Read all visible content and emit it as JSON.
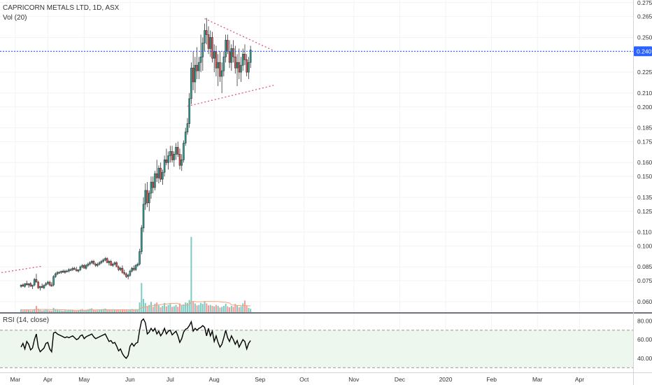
{
  "header": {
    "symbol_line": "CAPRICORN METALS LTD, 1D, ASX",
    "volume_label": "Vol (20)"
  },
  "rsi_panel": {
    "label": "RSI (14, close)",
    "ticks": [
      "80.00",
      "60.00",
      "40.00"
    ],
    "tick_values": [
      80,
      60,
      40
    ],
    "overbought": 70,
    "oversold": 30,
    "ylim": [
      25,
      87
    ]
  },
  "colors": {
    "up": "#26a69a",
    "up_fill": "#ffffff",
    "down": "#ef5350",
    "candle_border": "#333333",
    "trendline": "#e0567c",
    "price_line": "#2962ff",
    "volume_ma": "#f4a27c",
    "rsi_line": "#000000",
    "rsi_band": "#eef7ee"
  },
  "chart_data": {
    "type": "candlestick",
    "price_axis": {
      "ticks": [
        "0.275",
        "0.265",
        "0.250",
        "0.240",
        "0.225",
        "0.210",
        "0.200",
        "0.185",
        "0.175",
        "0.160",
        "0.150",
        "0.135",
        "0.125",
        "0.110",
        "0.100",
        "0.085",
        "0.075",
        "0.060"
      ],
      "tick_values": [
        0.275,
        0.265,
        0.25,
        0.24,
        0.225,
        0.21,
        0.2,
        0.185,
        0.175,
        0.16,
        0.15,
        0.135,
        0.125,
        0.11,
        0.1,
        0.085,
        0.075,
        0.06
      ],
      "ylim": [
        0.0519,
        0.2769
      ],
      "current_price": 0.24,
      "current_price_label": "0.240"
    },
    "time_axis": {
      "labels": [
        "Mar",
        "Apr",
        "May",
        "Jun",
        "Jul",
        "Aug",
        "Sep",
        "Oct",
        "Nov",
        "Dec",
        "2020",
        "Feb",
        "Mar",
        "Apr"
      ],
      "label_index": [
        -3,
        14,
        33,
        57,
        78,
        101,
        125,
        148,
        174,
        198,
        222,
        246,
        270,
        292
      ],
      "index_range": [
        -11,
        320
      ]
    },
    "candles": [
      [
        0.071,
        0.072,
        0.07,
        0.072
      ],
      [
        0.072,
        0.073,
        0.071,
        0.071
      ],
      [
        0.071,
        0.073,
        0.07,
        0.073
      ],
      [
        0.073,
        0.075,
        0.072,
        0.072
      ],
      [
        0.072,
        0.073,
        0.07,
        0.073
      ],
      [
        0.073,
        0.074,
        0.071,
        0.071
      ],
      [
        0.071,
        0.072,
        0.069,
        0.072
      ],
      [
        0.072,
        0.077,
        0.071,
        0.076
      ],
      [
        0.076,
        0.08,
        0.075,
        0.074
      ],
      [
        0.074,
        0.075,
        0.069,
        0.07
      ],
      [
        0.07,
        0.071,
        0.068,
        0.071
      ],
      [
        0.071,
        0.073,
        0.07,
        0.07
      ],
      [
        0.07,
        0.072,
        0.069,
        0.072
      ],
      [
        0.072,
        0.074,
        0.071,
        0.073
      ],
      [
        0.073,
        0.075,
        0.072,
        0.074
      ],
      [
        0.074,
        0.075,
        0.071,
        0.072
      ],
      [
        0.072,
        0.074,
        0.071,
        0.071
      ],
      [
        0.072,
        0.079,
        0.071,
        0.078
      ],
      [
        0.078,
        0.081,
        0.077,
        0.08
      ],
      [
        0.08,
        0.082,
        0.079,
        0.081
      ],
      [
        0.081,
        0.082,
        0.08,
        0.081
      ],
      [
        0.081,
        0.082,
        0.08,
        0.082
      ],
      [
        0.082,
        0.083,
        0.081,
        0.081
      ],
      [
        0.081,
        0.083,
        0.08,
        0.082
      ],
      [
        0.082,
        0.083,
        0.081,
        0.082
      ],
      [
        0.082,
        0.084,
        0.081,
        0.083
      ],
      [
        0.083,
        0.084,
        0.082,
        0.083
      ],
      [
        0.083,
        0.085,
        0.082,
        0.084
      ],
      [
        0.084,
        0.085,
        0.083,
        0.083
      ],
      [
        0.083,
        0.085,
        0.082,
        0.082
      ],
      [
        0.082,
        0.083,
        0.081,
        0.083
      ],
      [
        0.083,
        0.086,
        0.082,
        0.085
      ],
      [
        0.085,
        0.087,
        0.084,
        0.086
      ],
      [
        0.086,
        0.087,
        0.084,
        0.084
      ],
      [
        0.084,
        0.087,
        0.083,
        0.086
      ],
      [
        0.086,
        0.088,
        0.085,
        0.087
      ],
      [
        0.087,
        0.089,
        0.086,
        0.088
      ],
      [
        0.088,
        0.09,
        0.087,
        0.089
      ],
      [
        0.089,
        0.09,
        0.087,
        0.087
      ],
      [
        0.087,
        0.088,
        0.085,
        0.086
      ],
      [
        0.086,
        0.088,
        0.085,
        0.087
      ],
      [
        0.087,
        0.089,
        0.086,
        0.088
      ],
      [
        0.088,
        0.09,
        0.087,
        0.089
      ],
      [
        0.089,
        0.091,
        0.088,
        0.09
      ],
      [
        0.09,
        0.092,
        0.089,
        0.091
      ],
      [
        0.091,
        0.092,
        0.089,
        0.088
      ],
      [
        0.088,
        0.09,
        0.086,
        0.089
      ],
      [
        0.089,
        0.09,
        0.086,
        0.086
      ],
      [
        0.086,
        0.088,
        0.085,
        0.087
      ],
      [
        0.087,
        0.089,
        0.086,
        0.088
      ],
      [
        0.088,
        0.089,
        0.085,
        0.085
      ],
      [
        0.085,
        0.086,
        0.082,
        0.083
      ],
      [
        0.083,
        0.085,
        0.082,
        0.084
      ],
      [
        0.084,
        0.086,
        0.08,
        0.081
      ],
      [
        0.081,
        0.083,
        0.079,
        0.08
      ],
      [
        0.08,
        0.081,
        0.077,
        0.078
      ],
      [
        0.078,
        0.08,
        0.076,
        0.079
      ],
      [
        0.079,
        0.083,
        0.078,
        0.082
      ],
      [
        0.082,
        0.085,
        0.081,
        0.084
      ],
      [
        0.084,
        0.086,
        0.082,
        0.083
      ],
      [
        0.083,
        0.087,
        0.082,
        0.086
      ],
      [
        0.086,
        0.088,
        0.085,
        0.087
      ],
      [
        0.087,
        0.098,
        0.086,
        0.096
      ],
      [
        0.096,
        0.115,
        0.094,
        0.113
      ],
      [
        0.113,
        0.135,
        0.11,
        0.13
      ],
      [
        0.13,
        0.145,
        0.126,
        0.14
      ],
      [
        0.14,
        0.146,
        0.128,
        0.131
      ],
      [
        0.131,
        0.14,
        0.125,
        0.138
      ],
      [
        0.138,
        0.15,
        0.134,
        0.146
      ],
      [
        0.146,
        0.15,
        0.138,
        0.142
      ],
      [
        0.142,
        0.154,
        0.14,
        0.152
      ],
      [
        0.152,
        0.162,
        0.146,
        0.149
      ],
      [
        0.149,
        0.158,
        0.145,
        0.156
      ],
      [
        0.156,
        0.16,
        0.146,
        0.148
      ],
      [
        0.148,
        0.155,
        0.144,
        0.153
      ],
      [
        0.153,
        0.165,
        0.15,
        0.162
      ],
      [
        0.162,
        0.17,
        0.158,
        0.16
      ],
      [
        0.16,
        0.168,
        0.155,
        0.165
      ],
      [
        0.165,
        0.172,
        0.16,
        0.168
      ],
      [
        0.168,
        0.172,
        0.16,
        0.162
      ],
      [
        0.162,
        0.168,
        0.157,
        0.166
      ],
      [
        0.166,
        0.174,
        0.162,
        0.171
      ],
      [
        0.171,
        0.175,
        0.164,
        0.166
      ],
      [
        0.166,
        0.17,
        0.155,
        0.158
      ],
      [
        0.158,
        0.166,
        0.154,
        0.162
      ],
      [
        0.162,
        0.176,
        0.16,
        0.174
      ],
      [
        0.174,
        0.185,
        0.172,
        0.182
      ],
      [
        0.182,
        0.192,
        0.18,
        0.188
      ],
      [
        0.188,
        0.21,
        0.185,
        0.206
      ],
      [
        0.206,
        0.232,
        0.202,
        0.228
      ],
      [
        0.228,
        0.24,
        0.212,
        0.218
      ],
      [
        0.218,
        0.236,
        0.21,
        0.23
      ],
      [
        0.23,
        0.243,
        0.22,
        0.226
      ],
      [
        0.226,
        0.236,
        0.22,
        0.232
      ],
      [
        0.232,
        0.252,
        0.225,
        0.236
      ],
      [
        0.236,
        0.25,
        0.226,
        0.246
      ],
      [
        0.246,
        0.26,
        0.24,
        0.255
      ],
      [
        0.255,
        0.264,
        0.245,
        0.252
      ],
      [
        0.252,
        0.258,
        0.238,
        0.242
      ],
      [
        0.242,
        0.255,
        0.236,
        0.25
      ],
      [
        0.25,
        0.254,
        0.232,
        0.235
      ],
      [
        0.235,
        0.245,
        0.225,
        0.24
      ],
      [
        0.24,
        0.244,
        0.222,
        0.228
      ],
      [
        0.228,
        0.238,
        0.215,
        0.232
      ],
      [
        0.232,
        0.24,
        0.218,
        0.222
      ],
      [
        0.222,
        0.232,
        0.21,
        0.226
      ],
      [
        0.226,
        0.24,
        0.222,
        0.236
      ],
      [
        0.236,
        0.252,
        0.232,
        0.248
      ],
      [
        0.248,
        0.252,
        0.238,
        0.24
      ],
      [
        0.24,
        0.248,
        0.228,
        0.232
      ],
      [
        0.232,
        0.245,
        0.226,
        0.242
      ],
      [
        0.242,
        0.248,
        0.232,
        0.236
      ],
      [
        0.236,
        0.244,
        0.224,
        0.228
      ],
      [
        0.228,
        0.238,
        0.215,
        0.232
      ],
      [
        0.232,
        0.242,
        0.22,
        0.225
      ],
      [
        0.225,
        0.236,
        0.218,
        0.23
      ],
      [
        0.23,
        0.242,
        0.226,
        0.238
      ],
      [
        0.238,
        0.245,
        0.23,
        0.234
      ],
      [
        0.234,
        0.238,
        0.222,
        0.225
      ],
      [
        0.225,
        0.236,
        0.22,
        0.232
      ],
      [
        0.232,
        0.244,
        0.228,
        0.241
      ]
    ],
    "volume": [
      1.2,
      0.8,
      0.9,
      1.1,
      0.9,
      0.7,
      0.8,
      1.3,
      2.6,
      1.4,
      0.9,
      0.7,
      0.8,
      1.1,
      0.9,
      0.7,
      0.6,
      1.8,
      1.2,
      0.9,
      0.8,
      0.7,
      0.6,
      0.8,
      0.7,
      0.9,
      0.8,
      1.0,
      0.7,
      0.6,
      0.7,
      1.1,
      1.3,
      0.9,
      1.0,
      1.2,
      1.4,
      1.6,
      1.1,
      0.9,
      0.8,
      1.0,
      1.2,
      1.3,
      1.5,
      1.2,
      0.9,
      1.0,
      0.8,
      0.9,
      1.0,
      1.1,
      0.8,
      1.2,
      1.0,
      0.9,
      0.8,
      1.1,
      1.3,
      1.0,
      1.2,
      1.0,
      4.0,
      12.0,
      5.5,
      3.8,
      2.5,
      3.0,
      4.2,
      2.2,
      3.5,
      4.0,
      2.8,
      2.0,
      2.6,
      3.8,
      2.4,
      3.0,
      3.4,
      2.2,
      2.4,
      3.0,
      2.2,
      3.6,
      2.8,
      3.2,
      4.0,
      3.8,
      5.0,
      31.0,
      4.5,
      3.6,
      2.8,
      3.0,
      3.8,
      3.4,
      4.6,
      3.6,
      2.8,
      3.0,
      2.6,
      2.4,
      3.0,
      2.6,
      1.9,
      2.2,
      2.6,
      3.5,
      2.4,
      2.0,
      2.6,
      2.2,
      3.4,
      2.8,
      2.0,
      2.4,
      3.6,
      4.8,
      2.8,
      1.8,
      1.4
    ],
    "volume_ma": [
      1.0,
      1.0,
      1.0,
      1.0,
      1.0,
      1.0,
      1.0,
      1.0,
      1.1,
      1.1,
      1.1,
      1.1,
      1.1,
      1.1,
      1.1,
      1.1,
      1.0,
      1.1,
      1.1,
      1.1,
      1.0,
      1.0,
      1.0,
      1.0,
      0.9,
      0.9,
      0.9,
      0.9,
      0.8,
      0.8,
      0.8,
      0.8,
      0.8,
      0.8,
      0.8,
      0.9,
      0.9,
      0.9,
      0.9,
      0.9,
      1.0,
      1.0,
      1.0,
      1.0,
      1.0,
      1.0,
      1.0,
      1.0,
      1.0,
      1.0,
      1.0,
      1.0,
      1.0,
      1.0,
      1.0,
      1.0,
      1.0,
      1.0,
      1.0,
      1.0,
      1.0,
      1.0,
      1.3,
      1.8,
      2.0,
      2.2,
      2.3,
      2.4,
      2.6,
      2.7,
      2.8,
      2.9,
      3.0,
      3.1,
      3.2,
      3.3,
      3.4,
      3.5,
      3.6,
      3.6,
      3.6,
      3.7,
      3.6,
      3.0,
      2.9,
      2.8,
      2.9,
      2.9,
      3.0,
      4.4,
      4.4,
      4.4,
      4.3,
      4.3,
      4.3,
      4.3,
      4.4,
      4.4,
      4.4,
      4.4,
      4.4,
      4.4,
      4.4,
      4.4,
      4.3,
      4.2,
      4.1,
      4.1,
      3.9,
      3.8,
      3.0,
      2.9,
      2.9,
      2.8,
      2.7,
      2.7,
      2.7,
      2.7,
      2.7,
      2.6,
      2.6
    ],
    "volume_ylim": [
      0,
      34
    ],
    "rsi": [
      52,
      56,
      50,
      58,
      55,
      49,
      51,
      60,
      66,
      52,
      47,
      49,
      51,
      56,
      57,
      50,
      47,
      67,
      68,
      66,
      65,
      64,
      63,
      62,
      63,
      62,
      63,
      64,
      62,
      60,
      61,
      64,
      65,
      61,
      63,
      64,
      65,
      66,
      63,
      61,
      62,
      63,
      64,
      65,
      66,
      62,
      58,
      59,
      56,
      57,
      53,
      48,
      50,
      45,
      42,
      40,
      43,
      53,
      56,
      53,
      56,
      57,
      70,
      80,
      82,
      78,
      66,
      68,
      72,
      69,
      72,
      66,
      69,
      64,
      67,
      72,
      66,
      69,
      70,
      65,
      67,
      69,
      64,
      57,
      61,
      68,
      71,
      72,
      75,
      79,
      69,
      72,
      70,
      72,
      73,
      75,
      73,
      64,
      72,
      64,
      69,
      58,
      64,
      57,
      52,
      55,
      62,
      70,
      62,
      58,
      64,
      60,
      55,
      59,
      52,
      56,
      60,
      58,
      50,
      56,
      59
    ],
    "trendlines": [
      {
        "x1": -12,
        "y1": 0.0805,
        "x2": 11,
        "y2": 0.0855,
        "dash": "2,3"
      },
      {
        "x1": 96,
        "y1": 0.2635,
        "x2": 132,
        "y2": 0.2405,
        "dash": "2,3"
      },
      {
        "x1": 87,
        "y1": 0.2005,
        "x2": 132,
        "y2": 0.2155,
        "dash": "2,3"
      }
    ]
  }
}
